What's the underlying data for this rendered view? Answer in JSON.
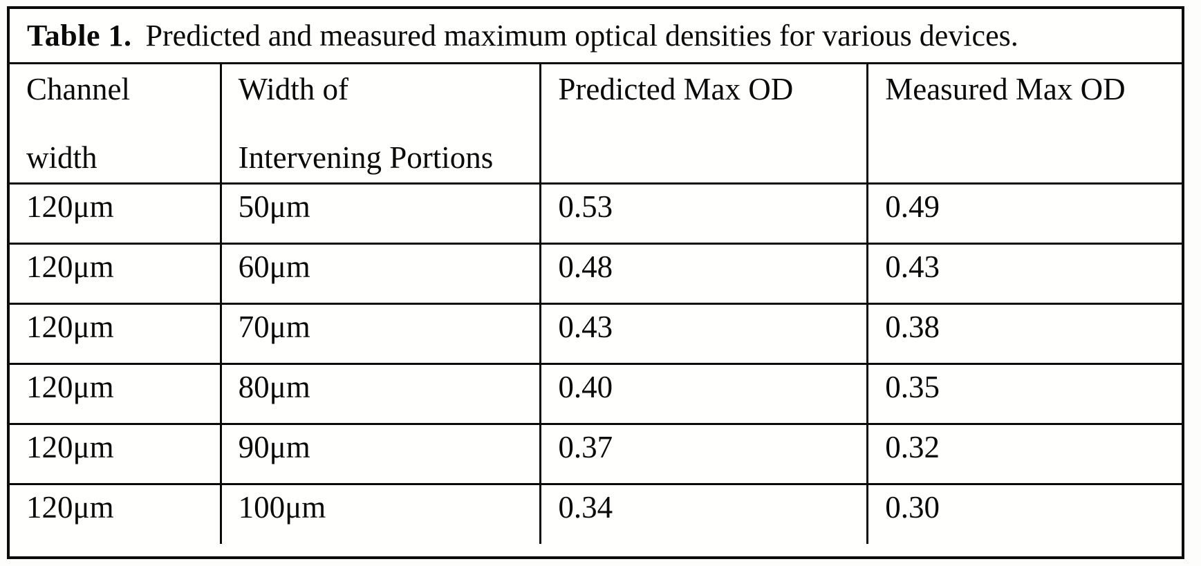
{
  "caption": {
    "label": "Table 1.",
    "text": "Predicted and measured maximum optical densities for various devices."
  },
  "table": {
    "headers": [
      {
        "line1": "Channel",
        "line2": "width"
      },
      {
        "line1": "Width of",
        "line2": "Intervening Portions"
      },
      {
        "line1": "Predicted Max OD",
        "line2": ""
      },
      {
        "line1": "Measured Max OD",
        "line2": ""
      }
    ],
    "rows": [
      {
        "channel_width": "120μm",
        "intervening_width": "50μm",
        "predicted_max_od": "0.53",
        "measured_max_od": "0.49"
      },
      {
        "channel_width": "120μm",
        "intervening_width": "60μm",
        "predicted_max_od": "0.48",
        "measured_max_od": "0.43"
      },
      {
        "channel_width": "120μm",
        "intervening_width": "70μm",
        "predicted_max_od": "0.43",
        "measured_max_od": "0.38"
      },
      {
        "channel_width": "120μm",
        "intervening_width": "80μm",
        "predicted_max_od": "0.40",
        "measured_max_od": "0.35"
      },
      {
        "channel_width": "120μm",
        "intervening_width": "90μm",
        "predicted_max_od": "0.37",
        "measured_max_od": "0.32"
      },
      {
        "channel_width": "120μm",
        "intervening_width": "100μm",
        "predicted_max_od": "0.34",
        "measured_max_od": "0.30"
      }
    ]
  }
}
